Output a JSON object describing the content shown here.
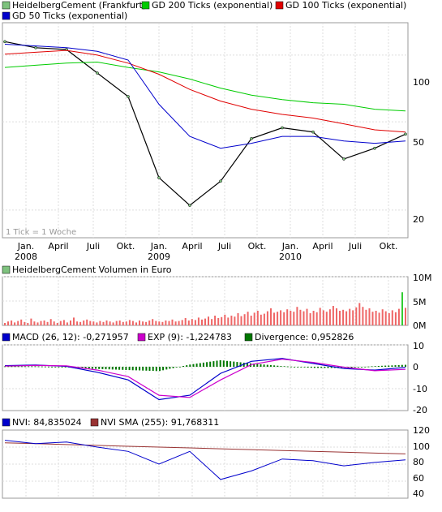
{
  "colors": {
    "price": "#7ec27e",
    "gd200": "#00cc00",
    "gd100": "#e00000",
    "gd50": "#0000cc",
    "vol": "#ee6666",
    "macd": "#0000cc",
    "exp": "#cc00cc",
    "div": "#007700",
    "nvi": "#0000cc",
    "nvisma": "#993333"
  },
  "legend": {
    "price": "HeidelbergCement (Frankfurt)",
    "gd200": "GD 200 Ticks (exponential)",
    "gd100": "GD 100 Ticks (exponential)",
    "gd50": "GD 50 Ticks (exponential)"
  },
  "note": "1 Tick = 1 Woche",
  "x_labels": [
    "Jan.",
    "April",
    "Juli",
    "Okt.",
    "Jan.",
    "April",
    "Juli",
    "Okt.",
    "Jan.",
    "April",
    "Juli",
    "Okt."
  ],
  "year_labels": [
    "2008",
    "2009",
    "2010"
  ],
  "price_ticks": [
    "100",
    "50",
    "20"
  ],
  "volume": {
    "label": "HeidelbergCement Volumen in Euro",
    "ticks": [
      "10M",
      "5M",
      "0M"
    ]
  },
  "macd": {
    "label_macd": "MACD (26, 12): -0,271957",
    "label_exp": "EXP (9): -1,224783",
    "label_div": "Divergence: 0,952826",
    "ticks": [
      "10",
      "0",
      "-10",
      "-20"
    ]
  },
  "nvi": {
    "label_nvi": "NVI: 84,835024",
    "label_sma": "NVI SMA (255): 91,768311",
    "ticks": [
      "120",
      "100",
      "80",
      "60",
      "40"
    ]
  },
  "chart_data": [
    {
      "type": "line",
      "title": "HeidelbergCement (Frankfurt)",
      "y_scale": "log",
      "ylim": [
        15,
        140
      ],
      "x": [
        "2007-11",
        "2008-01",
        "2008-04",
        "2008-07",
        "2008-10",
        "2009-01",
        "2009-04",
        "2009-07",
        "2009-10",
        "2010-01",
        "2010-04",
        "2010-07",
        "2010-10",
        "2010-11"
      ],
      "series": [
        {
          "name": "HeidelbergCement (Frankfurt)",
          "values": [
            115,
            108,
            106,
            83,
            65,
            28,
            21,
            27,
            42,
            47,
            45,
            34,
            38,
            44
          ]
        },
        {
          "name": "GD 200 Ticks (exponential)",
          "values": [
            88,
            90,
            92,
            93,
            88,
            84,
            78,
            71,
            66,
            63,
            61,
            60,
            57,
            56
          ]
        },
        {
          "name": "GD 100 Ticks (exponential)",
          "values": [
            101,
            103,
            105,
            100,
            92,
            82,
            70,
            62,
            57,
            54,
            52,
            49,
            46,
            45
          ]
        },
        {
          "name": "GD 50 Ticks (exponential)",
          "values": [
            112,
            110,
            108,
            104,
            95,
            60,
            43,
            38,
            40,
            43,
            43,
            41,
            40,
            41
          ]
        }
      ]
    },
    {
      "type": "bar",
      "title": "HeidelbergCement Volumen in Euro",
      "y_unit": "Mio. Euro",
      "ylim": [
        0,
        10
      ],
      "values": [
        0.5,
        0.8,
        1.0,
        0.6,
        0.9,
        1.2,
        0.7,
        0.5,
        1.4,
        0.8,
        0.6,
        0.9,
        1.0,
        0.7,
        1.3,
        0.8,
        0.5,
        0.9,
        1.1,
        0.6,
        1.0,
        1.6,
        0.8,
        0.7,
        1.0,
        1.2,
        0.9,
        0.8,
        0.6,
        0.9,
        0.7,
        1.0,
        0.8,
        0.6,
        0.9,
        1.0,
        0.7,
        0.8,
        1.1,
        0.9,
        0.6,
        1.0,
        0.8,
        0.7,
        1.0,
        1.3,
        0.9,
        0.8,
        0.7,
        1.0,
        0.9,
        1.2,
        0.8,
        0.9,
        1.1,
        1.5,
        1.0,
        1.3,
        1.1,
        1.6,
        1.2,
        1.4,
        1.8,
        1.3,
        2.0,
        1.5,
        1.7,
        2.2,
        1.6,
        2.0,
        1.8,
        2.5,
        1.9,
        2.3,
        2.8,
        2.0,
        2.6,
        3.0,
        2.2,
        2.4,
        2.9,
        3.5,
        2.6,
        2.8,
        3.1,
        2.7,
        3.3,
        3.0,
        2.8,
        3.8,
        3.2,
        2.9,
        3.4,
        2.5,
        3.0,
        2.7,
        3.6,
        3.1,
        2.8,
        3.3,
        4.0,
        3.5,
        3.0,
        3.2,
        2.9,
        3.4,
        3.1,
        3.7,
        4.6,
        3.8,
        3.2,
        3.5,
        2.8,
        3.0,
        2.6,
        3.3,
        2.9,
        2.5,
        3.1,
        2.7,
        3.4,
        6.8,
        3.6
      ]
    },
    {
      "type": "line",
      "title": "MACD",
      "ylim": [
        -20,
        10
      ],
      "x": [
        "2007-11",
        "2008-01",
        "2008-04",
        "2008-07",
        "2008-10",
        "2009-01",
        "2009-04",
        "2009-07",
        "2009-10",
        "2010-01",
        "2010-04",
        "2010-07",
        "2010-10",
        "2010-11"
      ],
      "series": [
        {
          "name": "MACD (26, 12)",
          "values": [
            0.5,
            0.8,
            0.2,
            -2.5,
            -6.0,
            -15.0,
            -13.0,
            -3.0,
            2.5,
            3.8,
            1.5,
            -0.8,
            -1.5,
            -0.3
          ]
        },
        {
          "name": "EXP (9)",
          "values": [
            0.3,
            0.6,
            0.4,
            -1.5,
            -4.5,
            -13.0,
            -14.0,
            -6.0,
            1.0,
            3.5,
            2.0,
            -0.2,
            -1.8,
            -1.2
          ]
        },
        {
          "name": "Divergence",
          "values": [
            0.2,
            0.2,
            -0.2,
            -1.0,
            -1.5,
            -2.0,
            1.0,
            3.0,
            1.5,
            0.3,
            -0.5,
            -0.6,
            0.3,
            0.9
          ]
        }
      ]
    },
    {
      "type": "line",
      "title": "NVI",
      "ylim": [
        40,
        120
      ],
      "x": [
        "2007-11",
        "2008-01",
        "2008-04",
        "2008-07",
        "2008-10",
        "2009-01",
        "2009-04",
        "2009-07",
        "2009-10",
        "2010-01",
        "2010-04",
        "2010-07",
        "2010-10",
        "2010-11"
      ],
      "series": [
        {
          "name": "NVI",
          "values": [
            108,
            104,
            106,
            100,
            95,
            80,
            95,
            62,
            72,
            86,
            84,
            78,
            82,
            85
          ]
        },
        {
          "name": "NVI SMA (255)",
          "values": [
            105,
            104,
            103,
            102,
            101,
            100,
            99,
            98,
            97,
            96,
            95,
            94,
            93,
            92
          ]
        }
      ]
    }
  ]
}
